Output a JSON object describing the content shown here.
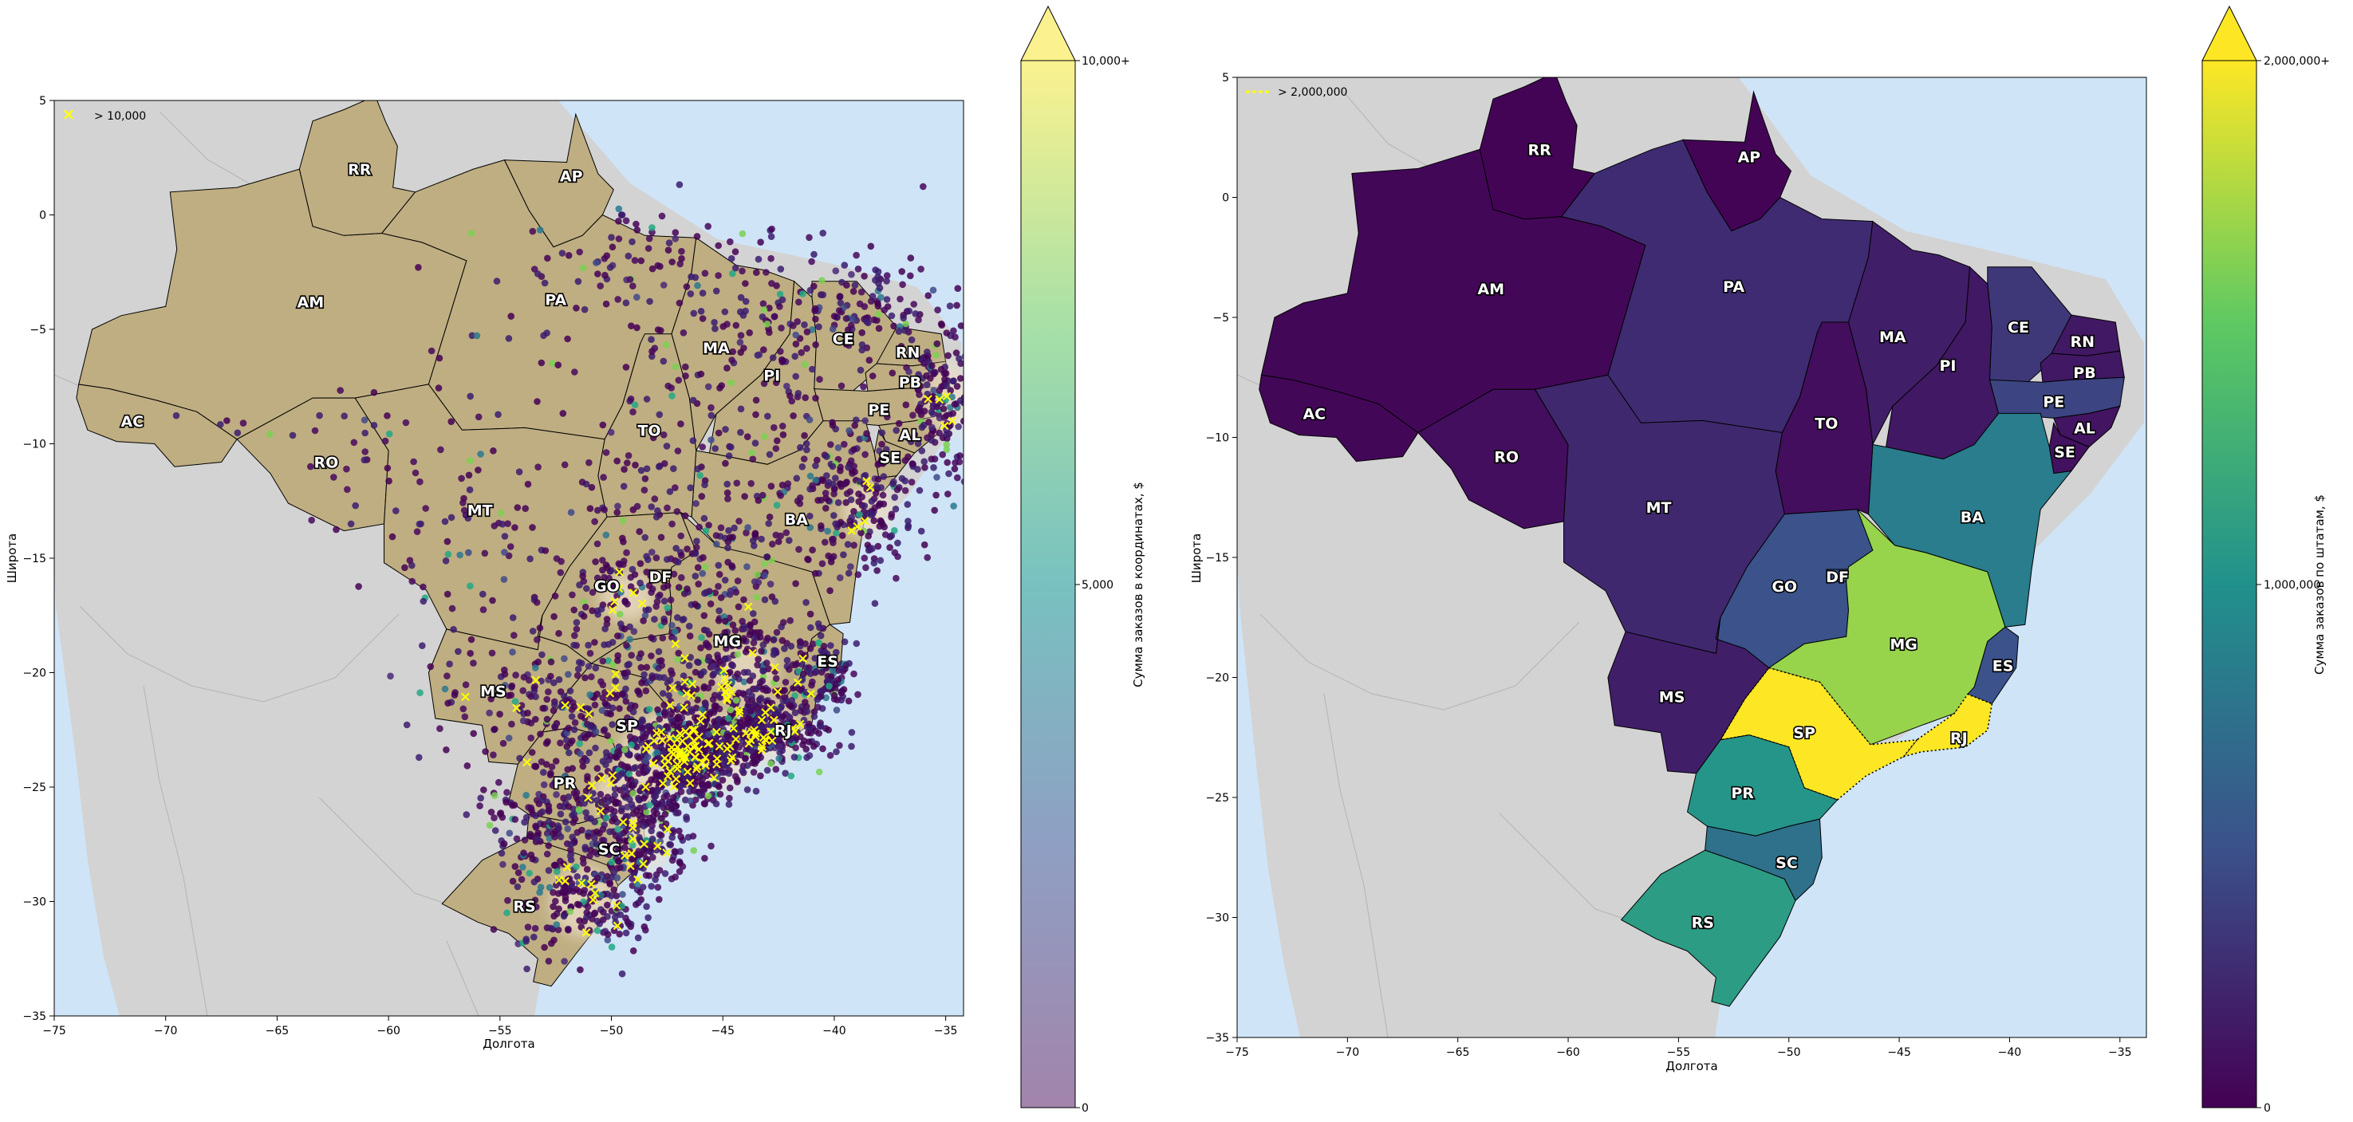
{
  "maps": [
    {
      "id": "left",
      "xlabel": "Долгота",
      "ylabel": "Широта",
      "xticks": [
        -75,
        -70,
        -65,
        -60,
        -55,
        -50,
        -45,
        -40,
        -35
      ],
      "yticks": [
        5,
        0,
        -5,
        -10,
        -15,
        -20,
        -25,
        -30,
        -35
      ],
      "legend_label": "> 10,000",
      "colorbar": {
        "label": "Сумма заказов в координатах, $",
        "ticks": [
          "0",
          "5,000",
          "10,000+"
        ],
        "extend": "max",
        "colormap": "viridis (semi-transparent)"
      }
    },
    {
      "id": "right",
      "xlabel": "Долгота",
      "ylabel": "Широта",
      "xticks": [
        -75,
        -70,
        -65,
        -60,
        -55,
        -50,
        -45,
        -40,
        -35
      ],
      "yticks": [
        5,
        0,
        -5,
        -10,
        -15,
        -20,
        -25,
        -30,
        -35
      ],
      "legend_label": "> 2,000,000",
      "colorbar": {
        "label": "Сумма заказов по штатам, $",
        "ticks": [
          "0",
          "1,000,000",
          "2,000,000+"
        ],
        "extend": "max",
        "colormap": "viridis"
      }
    }
  ],
  "colors": {
    "ocean": "#cfe4f7",
    "land": "#d3d3d3",
    "brazil_left": "#bfae82",
    "highlight": "#ffff00",
    "state_border": "#000000"
  },
  "states": {
    "AC": {
      "lon": -71.5,
      "lat": -9.0
    },
    "AM": {
      "lon": -63.5,
      "lat": -3.8
    },
    "RR": {
      "lon": -61.3,
      "lat": 2.0
    },
    "AP": {
      "lon": -51.8,
      "lat": 1.7
    },
    "PA": {
      "lon": -52.5,
      "lat": -3.7
    },
    "MA": {
      "lon": -45.3,
      "lat": -5.8
    },
    "PI": {
      "lon": -42.8,
      "lat": -7.0
    },
    "CE": {
      "lon": -39.6,
      "lat": -5.4
    },
    "RN": {
      "lon": -36.7,
      "lat": -6.0
    },
    "PB": {
      "lon": -36.6,
      "lat": -7.3
    },
    "PE": {
      "lon": -38.0,
      "lat": -8.5
    },
    "AL": {
      "lon": -36.6,
      "lat": -9.6
    },
    "SE": {
      "lon": -37.5,
      "lat": -10.6
    },
    "BA": {
      "lon": -41.7,
      "lat": -13.3
    },
    "TO": {
      "lon": -48.3,
      "lat": -9.4
    },
    "RO": {
      "lon": -62.8,
      "lat": -10.8
    },
    "MT": {
      "lon": -55.9,
      "lat": -12.9
    },
    "GO": {
      "lon": -50.2,
      "lat": -16.2
    },
    "DF": {
      "lon": -47.8,
      "lat": -15.8
    },
    "MG": {
      "lon": -44.8,
      "lat": -18.6
    },
    "ES": {
      "lon": -40.3,
      "lat": -19.5
    },
    "RJ": {
      "lon": -42.3,
      "lat": -22.5
    },
    "SP": {
      "lon": -49.3,
      "lat": -22.3
    },
    "MS": {
      "lon": -55.3,
      "lat": -20.8
    },
    "PR": {
      "lon": -52.1,
      "lat": -24.8
    },
    "SC": {
      "lon": -50.1,
      "lat": -27.7
    },
    "RS": {
      "lon": -53.9,
      "lat": -30.2
    }
  },
  "state_order_sums_level": {
    "AC": 0.02,
    "AM": 0.02,
    "RR": 0.01,
    "AP": 0.01,
    "PA": 0.13,
    "MA": 0.09,
    "PI": 0.07,
    "CE": 0.17,
    "RN": 0.07,
    "PB": 0.07,
    "PE": 0.21,
    "AL": 0.06,
    "SE": 0.05,
    "BA": 0.42,
    "TO": 0.04,
    "RO": 0.04,
    "MT": 0.12,
    "GO": 0.25,
    "DF": 0.25,
    "MG": 0.84,
    "ES": 0.25,
    "RJ": 1.0,
    "SP": 1.0,
    "MS": 0.09,
    "PR": 0.52,
    "SC": 0.37,
    "RS": 0.55
  }
}
